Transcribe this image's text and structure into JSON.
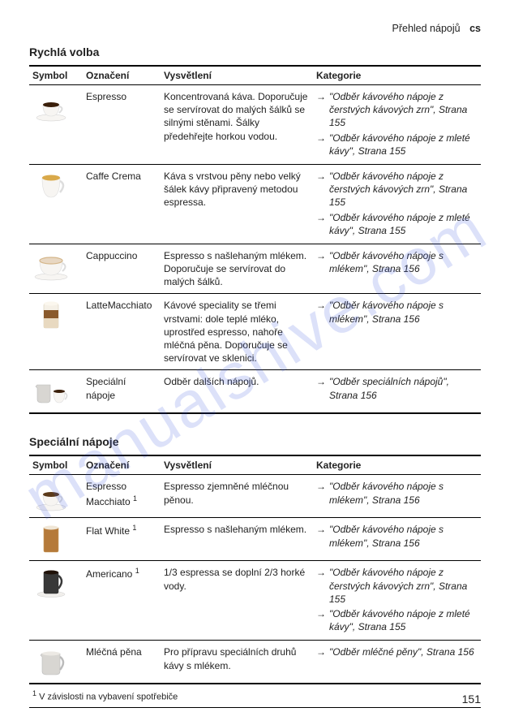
{
  "header": {
    "title": "Přehled nápojů",
    "lang": "cs"
  },
  "watermark": "manualshive.com",
  "section1": {
    "title": "Rychlá volba",
    "headers": {
      "symbol": "Symbol",
      "oznaceni": "Označení",
      "vysvetleni": "Vysvětlení",
      "kategorie": "Kategorie"
    },
    "rows": [
      {
        "icon": {
          "cup_fill": "#3a1f0a",
          "cup_body": "#f7f5f2",
          "saucer": "#f7f5f2",
          "height": 0.35,
          "shape": "espresso"
        },
        "oznaceni": "Espresso",
        "vysvetleni": "Koncentrovaná káva. Doporučuje se servírovat do malých šálků se silnými stěnami. Šálky předehřejte horkou vodou.",
        "kategorie": [
          "\"Odběr kávového nápoje z čerstvých kávových zrn\", Strana 155",
          "\"Odběr kávového nápoje z mleté kávy\", Strana 155"
        ]
      },
      {
        "icon": {
          "cup_fill": "#d9a94a",
          "cup_body": "#f7f5f2",
          "saucer": "none",
          "height": 0.8,
          "shape": "mug"
        },
        "oznaceni": "Caffe Crema",
        "vysvetleni": "Káva s vrstvou pěny nebo velký šálek kávy připravený metodou espressa.",
        "kategorie": [
          "\"Odběr kávového nápoje z čerstvých kávových zrn\", Strana 155",
          "\"Odběr kávového nápoje z mleté kávy\", Strana 155"
        ]
      },
      {
        "icon": {
          "cup_fill": "#e8d7c2",
          "cup_body": "#f7f5f2",
          "saucer": "#f7f5f2",
          "height": 0.85,
          "shape": "wide"
        },
        "oznaceni": "Cappuccino",
        "vysvetleni": "Espresso s našlehaným mlékem. Doporučuje se servírovat do malých šálků.",
        "kategorie": [
          "\"Odběr kávového nápoje s mlékem\", Strana 156"
        ]
      },
      {
        "icon": {
          "cup_fill": "#c9a06a",
          "cup_body": "none",
          "saucer": "none",
          "height": 0.95,
          "shape": "glass-layers"
        },
        "oznaceni": "LatteMacchiato",
        "vysvetleni": "Kávové speciality se třemi vrstvami: dole teplé mléko, uprostřed espresso, nahoře mléčná pěna. Doporučuje se servírovat ve sklenici.",
        "kategorie": [
          "\"Odběr kávového nápoje s mlékem\", Strana 156"
        ]
      },
      {
        "icon": {
          "cup_fill": "#f3f1ee",
          "cup_body": "#d8d6d2",
          "saucer": "none",
          "height": 0.9,
          "shape": "pitcher-cup"
        },
        "oznaceni": "Speciální nápoje",
        "vysvetleni": "Odběr dalších nápojů.",
        "kategorie": [
          "\"Odběr speciálních nápojů\", Strana 156"
        ]
      }
    ]
  },
  "section2": {
    "title": "Speciální nápoje",
    "headers": {
      "symbol": "Symbol",
      "oznaceni": "Označení",
      "vysvetleni": "Vysvětlení",
      "kategorie": "Kategorie"
    },
    "rows": [
      {
        "icon": {
          "cup_fill": "#5b3a1a",
          "cup_body": "#f7f5f2",
          "saucer": "#f7f5f2",
          "height": 0.4,
          "shape": "espresso"
        },
        "oznaceni": "Espresso Macchiato",
        "sup": "1",
        "vysvetleni": "Espresso zjemněné mléčnou pěnou.",
        "kategorie": [
          "\"Odběr kávového nápoje s mlékem\", Strana 156"
        ]
      },
      {
        "icon": {
          "cup_fill": "#b57a3a",
          "cup_body": "none",
          "saucer": "none",
          "height": 0.95,
          "shape": "glass"
        },
        "oznaceni": "Flat White",
        "sup": "1",
        "vysvetleni": "Espresso s našlehaným mlékem.",
        "kategorie": [
          "\"Odběr kávového nápoje s mlékem\", Strana 156"
        ]
      },
      {
        "icon": {
          "cup_fill": "#1f1108",
          "cup_body": "#383838",
          "saucer": "#f1efec",
          "height": 0.85,
          "shape": "tall-cup"
        },
        "oznaceni": "Americano",
        "sup": "1",
        "vysvetleni": "1/3 espressa se doplní 2/3 horké vody.",
        "kategorie": [
          "\"Odběr kávového nápoje z čerstvých kávových zrn\", Strana 155",
          "\"Odběr kávového nápoje z mleté kávy\", Strana 155"
        ]
      },
      {
        "icon": {
          "cup_fill": "#f3f1ee",
          "cup_body": "#d8d6d2",
          "saucer": "none",
          "height": 0.9,
          "shape": "pitcher"
        },
        "oznaceni": "Mléčná pěna",
        "vysvetleni": "Pro přípravu speciálních druhů kávy s mlékem.",
        "kategorie": [
          "\"Odběr mléčné pěny\", Strana 156"
        ]
      }
    ],
    "footnote": {
      "sup": "1",
      "text": "V závislosti na vybavení spotřebiče"
    }
  },
  "page_number": "151"
}
